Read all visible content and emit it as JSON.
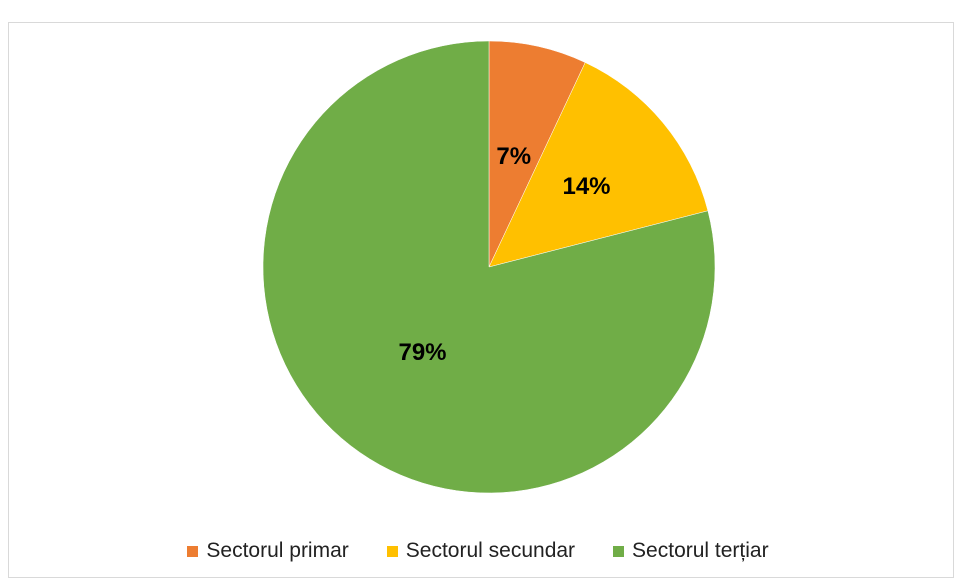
{
  "chart_data": {
    "type": "pie",
    "title": "",
    "slices": [
      {
        "label": "Sectorul primar",
        "value": 7,
        "display": "7%",
        "color": "#ed7d31"
      },
      {
        "label": "Sectorul secundar",
        "value": 14,
        "display": "14%",
        "color": "#ffc000"
      },
      {
        "label": "Sectorul terțiar",
        "value": 79,
        "display": "79%",
        "color": "#70ad47"
      }
    ],
    "legend_position": "bottom",
    "data_labels": true
  }
}
